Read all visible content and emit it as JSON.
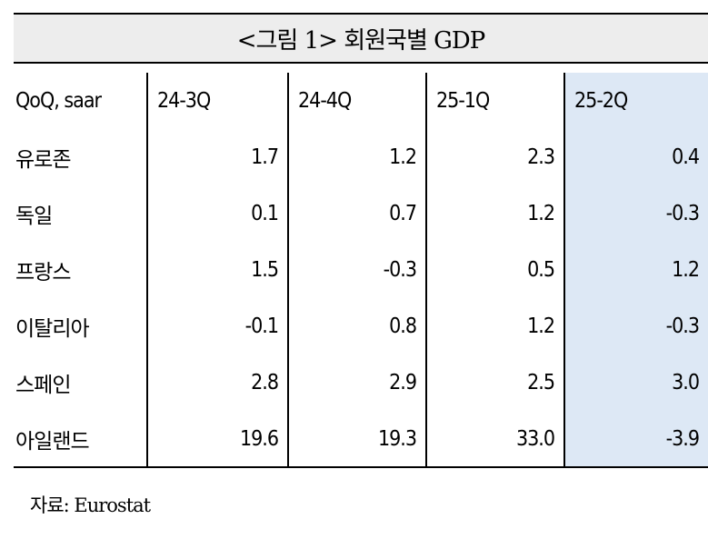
{
  "title": "<그림 1> 회원국별 GDP",
  "table": {
    "header": [
      "QoQ, saar",
      "24-3Q",
      "24-4Q",
      "25-1Q",
      "25-2Q"
    ],
    "rows": [
      {
        "country": "유로존",
        "values": [
          "1.7",
          "1.2",
          "2.3",
          "0.4"
        ]
      },
      {
        "country": "독일",
        "values": [
          "0.1",
          "0.7",
          "1.2",
          "-0.3"
        ]
      },
      {
        "country": "프랑스",
        "values": [
          "1.5",
          "-0.3",
          "0.5",
          "1.2"
        ]
      },
      {
        "country": "이탈리아",
        "values": [
          "-0.1",
          "0.8",
          "1.2",
          "-0.3"
        ]
      },
      {
        "country": "스페인",
        "values": [
          "2.8",
          "2.9",
          "2.5",
          "3.0"
        ]
      },
      {
        "country": "아일랜드",
        "values": [
          "19.6",
          "19.3",
          "33.0",
          "-3.9"
        ]
      }
    ],
    "highlight_color": "#dde8f5"
  },
  "source": "자료: Eurostat"
}
